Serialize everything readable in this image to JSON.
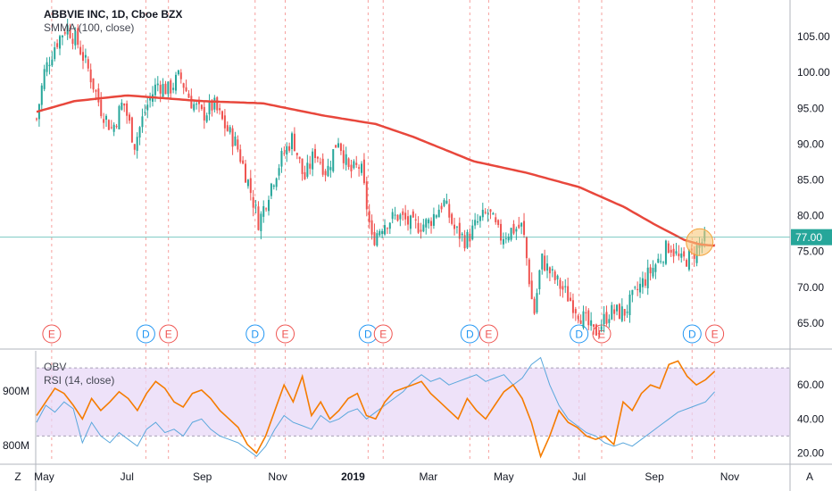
{
  "main_legend": {
    "title": "ABBVIE INC, 1D, Cboe BZX",
    "indicator": "SMMA (100, close)"
  },
  "sub_legend": {
    "obv": "OBV",
    "rsi": "RSI (14, close)"
  },
  "price_badge": "77.00",
  "corner_left": "Z",
  "corner_right": "A",
  "colors": {
    "up": "#26a69a",
    "down": "#ef5350",
    "smma": "#e8473c",
    "obv": "#f57c00",
    "rsi": "#5aa7dc",
    "rsi_band": "#e7d6f7",
    "event_e": "#ef5350",
    "event_d": "#2196f3",
    "price_line": "#26a69a",
    "highlight": "#f9c87a"
  },
  "chart_data": [
    {
      "type": "candlestick",
      "title": "ABBVIE INC, 1D, Cboe BZX",
      "x_ticks": [
        "May",
        "Jul",
        "Sep",
        "Nov",
        "2019",
        "Mar",
        "May",
        "Jul",
        "Sep",
        "Nov"
      ],
      "y_ticks": [
        65.0,
        70.0,
        75.0,
        80.0,
        85.0,
        90.0,
        95.0,
        100.0,
        105.0
      ],
      "y_tick_labels": [
        "65.00",
        "70.00",
        "75.00",
        "80.00",
        "85.00",
        "90.00",
        "95.00",
        "100.00",
        "105.00"
      ],
      "ylim": [
        61.5,
        109.5
      ],
      "grid": false,
      "last_price": 77.0,
      "series": [
        {
          "name": "SMMA (100, close)",
          "anchors": [
            [
              0,
              94.5
            ],
            [
              0.05,
              96.0
            ],
            [
              0.12,
              96.8
            ],
            [
              0.22,
              96.0
            ],
            [
              0.3,
              95.7
            ],
            [
              0.38,
              94.0
            ],
            [
              0.45,
              92.8
            ],
            [
              0.5,
              91.0
            ],
            [
              0.58,
              87.6
            ],
            [
              0.65,
              86.0
            ],
            [
              0.72,
              84.0
            ],
            [
              0.78,
              81.2
            ],
            [
              0.82,
              78.8
            ],
            [
              0.86,
              76.6
            ],
            [
              0.88,
              76.0
            ],
            [
              0.9,
              75.8
            ]
          ]
        }
      ],
      "price_path": [
        [
          0.0,
          93.5
        ],
        [
          0.01,
          100.0
        ],
        [
          0.025,
          104.0
        ],
        [
          0.04,
          106.5
        ],
        [
          0.055,
          104.0
        ],
        [
          0.07,
          100.0
        ],
        [
          0.085,
          95.0
        ],
        [
          0.1,
          92.0
        ],
        [
          0.115,
          96.0
        ],
        [
          0.13,
          90.0
        ],
        [
          0.145,
          95.0
        ],
        [
          0.16,
          98.5
        ],
        [
          0.175,
          97.5
        ],
        [
          0.19,
          99.5
        ],
        [
          0.205,
          96.0
        ],
        [
          0.22,
          94.0
        ],
        [
          0.235,
          95.5
        ],
        [
          0.25,
          92.5
        ],
        [
          0.265,
          90.0
        ],
        [
          0.28,
          85.0
        ],
        [
          0.295,
          79.0
        ],
        [
          0.31,
          84.0
        ],
        [
          0.325,
          88.0
        ],
        [
          0.34,
          91.0
        ],
        [
          0.355,
          85.0
        ],
        [
          0.37,
          89.0
        ],
        [
          0.385,
          86.0
        ],
        [
          0.4,
          91.0
        ],
        [
          0.415,
          86.0
        ],
        [
          0.43,
          87.0
        ],
        [
          0.445,
          76.5
        ],
        [
          0.46,
          79.0
        ],
        [
          0.48,
          80.0
        ],
        [
          0.5,
          78.5
        ],
        [
          0.52,
          79.0
        ],
        [
          0.54,
          82.0
        ],
        [
          0.555,
          78.0
        ],
        [
          0.57,
          76.5
        ],
        [
          0.585,
          79.0
        ],
        [
          0.6,
          80.5
        ],
        [
          0.615,
          77.0
        ],
        [
          0.63,
          78.0
        ],
        [
          0.645,
          78.5
        ],
        [
          0.66,
          66.0
        ],
        [
          0.67,
          74.0
        ],
        [
          0.685,
          71.5
        ],
        [
          0.7,
          69.5
        ],
        [
          0.72,
          66.5
        ],
        [
          0.74,
          63.5
        ],
        [
          0.76,
          66.5
        ],
        [
          0.78,
          66.5
        ],
        [
          0.8,
          70.0
        ],
        [
          0.82,
          73.0
        ],
        [
          0.84,
          76.0
        ],
        [
          0.855,
          73.5
        ],
        [
          0.87,
          74.5
        ],
        [
          0.88,
          76.0
        ],
        [
          0.89,
          77.0
        ]
      ],
      "events": [
        {
          "label": "E",
          "x": 0.02
        },
        {
          "label": "D",
          "x": 0.145
        },
        {
          "label": "E",
          "x": 0.175
        },
        {
          "label": "D",
          "x": 0.29
        },
        {
          "label": "E",
          "x": 0.33
        },
        {
          "label": "D",
          "x": 0.44
        },
        {
          "label": "E",
          "x": 0.46
        },
        {
          "label": "D",
          "x": 0.575
        },
        {
          "label": "E",
          "x": 0.6
        },
        {
          "label": "D",
          "x": 0.72
        },
        {
          "label": "E",
          "x": 0.75
        },
        {
          "label": "D",
          "x": 0.87
        },
        {
          "label": "E",
          "x": 0.9
        }
      ]
    },
    {
      "type": "line",
      "title": "RSI (14, close)",
      "y_ticks": [
        20.0,
        40.0,
        60.0
      ],
      "y_tick_labels": [
        "20.00",
        "40.00",
        "60.00"
      ],
      "ylim": [
        15,
        80
      ],
      "band": [
        30,
        70
      ],
      "left_scale_labels": [
        "900M",
        "800M"
      ],
      "series": [
        {
          "name": "OBV",
          "values": [
            42,
            50,
            58,
            55,
            48,
            40,
            52,
            45,
            50,
            56,
            52,
            45,
            55,
            62,
            58,
            50,
            47,
            55,
            57,
            52,
            45,
            40,
            35,
            25,
            20,
            30,
            45,
            60,
            50,
            65,
            42,
            50,
            40,
            45,
            52,
            55,
            42,
            40,
            50,
            56,
            58,
            60,
            62,
            55,
            50,
            45,
            40,
            52,
            45,
            40,
            48,
            56,
            60,
            52,
            38,
            18,
            30,
            45,
            38,
            35,
            30,
            28,
            30,
            25,
            50,
            45,
            55,
            60,
            58,
            72,
            74,
            65,
            60,
            63,
            68
          ]
        },
        {
          "name": "RSI (14, close)",
          "values": [
            38,
            48,
            44,
            50,
            46,
            26,
            38,
            30,
            26,
            32,
            28,
            24,
            34,
            38,
            32,
            34,
            30,
            38,
            40,
            34,
            30,
            28,
            26,
            22,
            18,
            24,
            34,
            42,
            38,
            36,
            34,
            42,
            38,
            40,
            44,
            46,
            40,
            44,
            48,
            52,
            56,
            62,
            66,
            62,
            64,
            60,
            62,
            64,
            66,
            62,
            64,
            66,
            60,
            64,
            72,
            76,
            60,
            48,
            40,
            36,
            32,
            30,
            26,
            24,
            26,
            24,
            28,
            32,
            36,
            40,
            44,
            46,
            48,
            50,
            56
          ]
        }
      ]
    }
  ]
}
